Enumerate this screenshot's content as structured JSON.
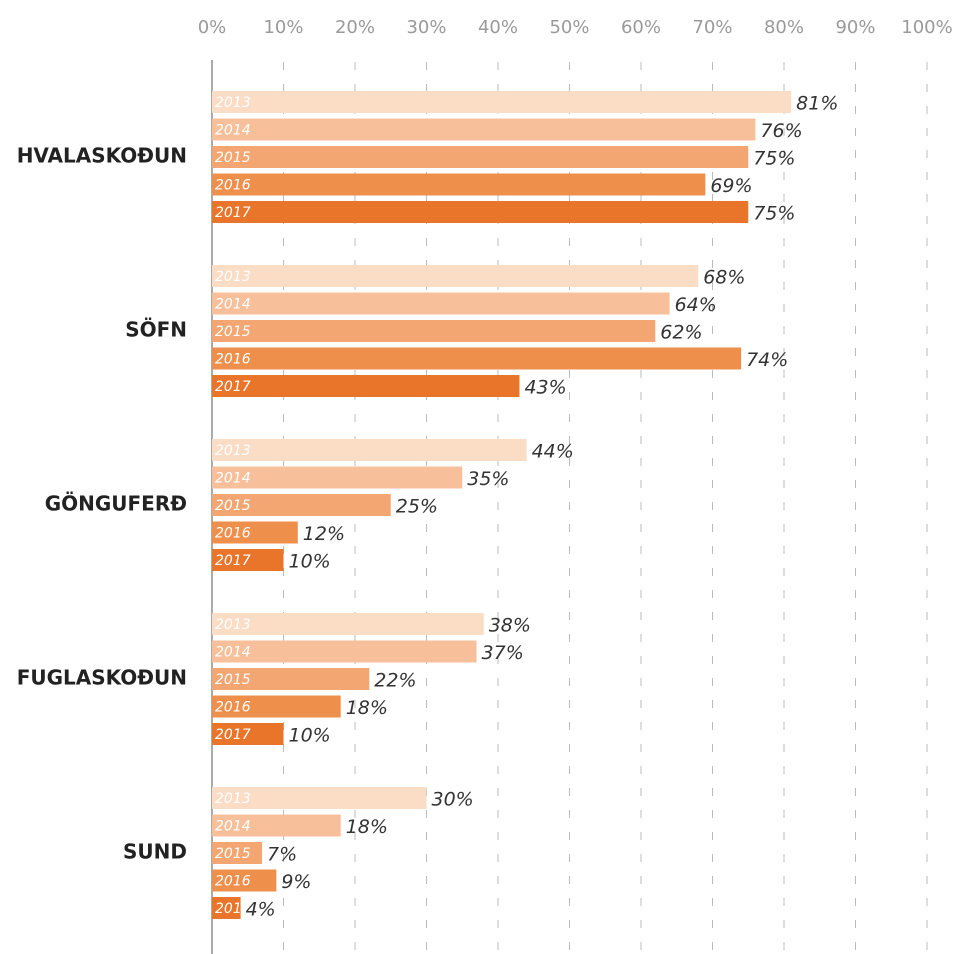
{
  "chart_data": {
    "type": "hbar",
    "categories": [
      "HVALASKOÐUN",
      "SÖFN",
      "GÖNGUFERÐ",
      "FUGLASKOÐUN",
      "SUND"
    ],
    "series": [
      {
        "name": "2013",
        "color": "#fbdcc5",
        "values": [
          81,
          68,
          44,
          38,
          30
        ],
        "value_labels": [
          "81%",
          "68%",
          "44%",
          "38%",
          "30%"
        ]
      },
      {
        "name": "2014",
        "color": "#f8c09a",
        "values": [
          76,
          64,
          35,
          37,
          18
        ],
        "value_labels": [
          "76%",
          "64%",
          "35%",
          "37%",
          "18%"
        ]
      },
      {
        "name": "2015",
        "color": "#f4a672",
        "values": [
          75,
          62,
          25,
          22,
          7
        ],
        "value_labels": [
          "75%",
          "62%",
          "25%",
          "22%",
          "7%"
        ]
      },
      {
        "name": "2016",
        "color": "#ef8f4c",
        "values": [
          69,
          74,
          12,
          18,
          9
        ],
        "value_labels": [
          "69%",
          "74%",
          "12%",
          "18%",
          "9%"
        ]
      },
      {
        "name": "2017",
        "color": "#e9752a",
        "values": [
          75,
          43,
          10,
          10,
          4
        ],
        "value_labels": [
          "75%",
          "43%",
          "10%",
          "10%",
          "4%"
        ]
      }
    ],
    "xlim": [
      0,
      100
    ],
    "xticks": [
      {
        "value": 0,
        "label": "0%"
      },
      {
        "value": 10,
        "label": "10%"
      },
      {
        "value": 20,
        "label": "20%"
      },
      {
        "value": 30,
        "label": "30%"
      },
      {
        "value": 40,
        "label": "40%"
      },
      {
        "value": 50,
        "label": "50%"
      },
      {
        "value": 60,
        "label": "60%"
      },
      {
        "value": 70,
        "label": "70%"
      },
      {
        "value": 80,
        "label": "80%"
      },
      {
        "value": 90,
        "label": "90%"
      },
      {
        "value": 100,
        "label": "100%"
      }
    ],
    "grid": true
  }
}
